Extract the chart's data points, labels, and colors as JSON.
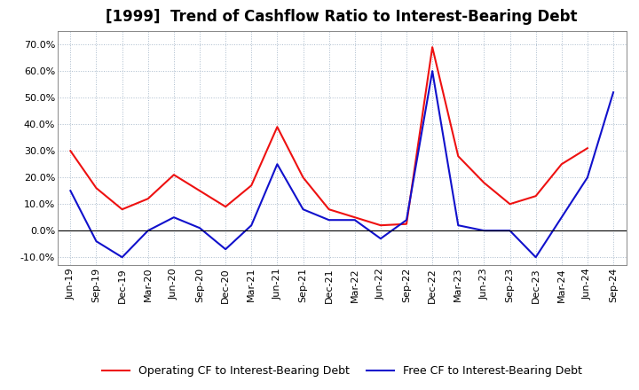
{
  "title": "[1999]  Trend of Cashflow Ratio to Interest-Bearing Debt",
  "x_labels": [
    "Jun-19",
    "Sep-19",
    "Dec-19",
    "Mar-20",
    "Jun-20",
    "Sep-20",
    "Dec-20",
    "Mar-21",
    "Jun-21",
    "Sep-21",
    "Dec-21",
    "Mar-22",
    "Jun-22",
    "Sep-22",
    "Dec-22",
    "Mar-23",
    "Jun-23",
    "Sep-23",
    "Dec-23",
    "Mar-24",
    "Jun-24",
    "Sep-24"
  ],
  "operating_cf": [
    30.0,
    16.0,
    8.0,
    12.0,
    21.0,
    15.0,
    9.0,
    17.0,
    39.0,
    20.0,
    8.0,
    5.0,
    2.0,
    2.5,
    69.0,
    28.0,
    18.0,
    10.0,
    13.0,
    25.0,
    31.0,
    null
  ],
  "free_cf": [
    15.0,
    -4.0,
    -10.0,
    0.0,
    5.0,
    1.0,
    -7.0,
    2.0,
    25.0,
    8.0,
    4.0,
    4.0,
    -3.0,
    4.0,
    60.0,
    2.0,
    0.0,
    0.0,
    -10.0,
    5.0,
    20.0,
    52.0
  ],
  "ylim": [
    -13,
    75
  ],
  "yticks": [
    -10.0,
    0.0,
    10.0,
    20.0,
    30.0,
    40.0,
    50.0,
    60.0,
    70.0
  ],
  "operating_color": "#EE1111",
  "free_color": "#1111CC",
  "background_color": "#FFFFFF",
  "plot_bg_color": "#FFFFFF",
  "grid_color": "#AABBCC",
  "legend_op": "Operating CF to Interest-Bearing Debt",
  "legend_free": "Free CF to Interest-Bearing Debt",
  "title_fontsize": 12,
  "tick_fontsize": 8,
  "legend_fontsize": 9
}
